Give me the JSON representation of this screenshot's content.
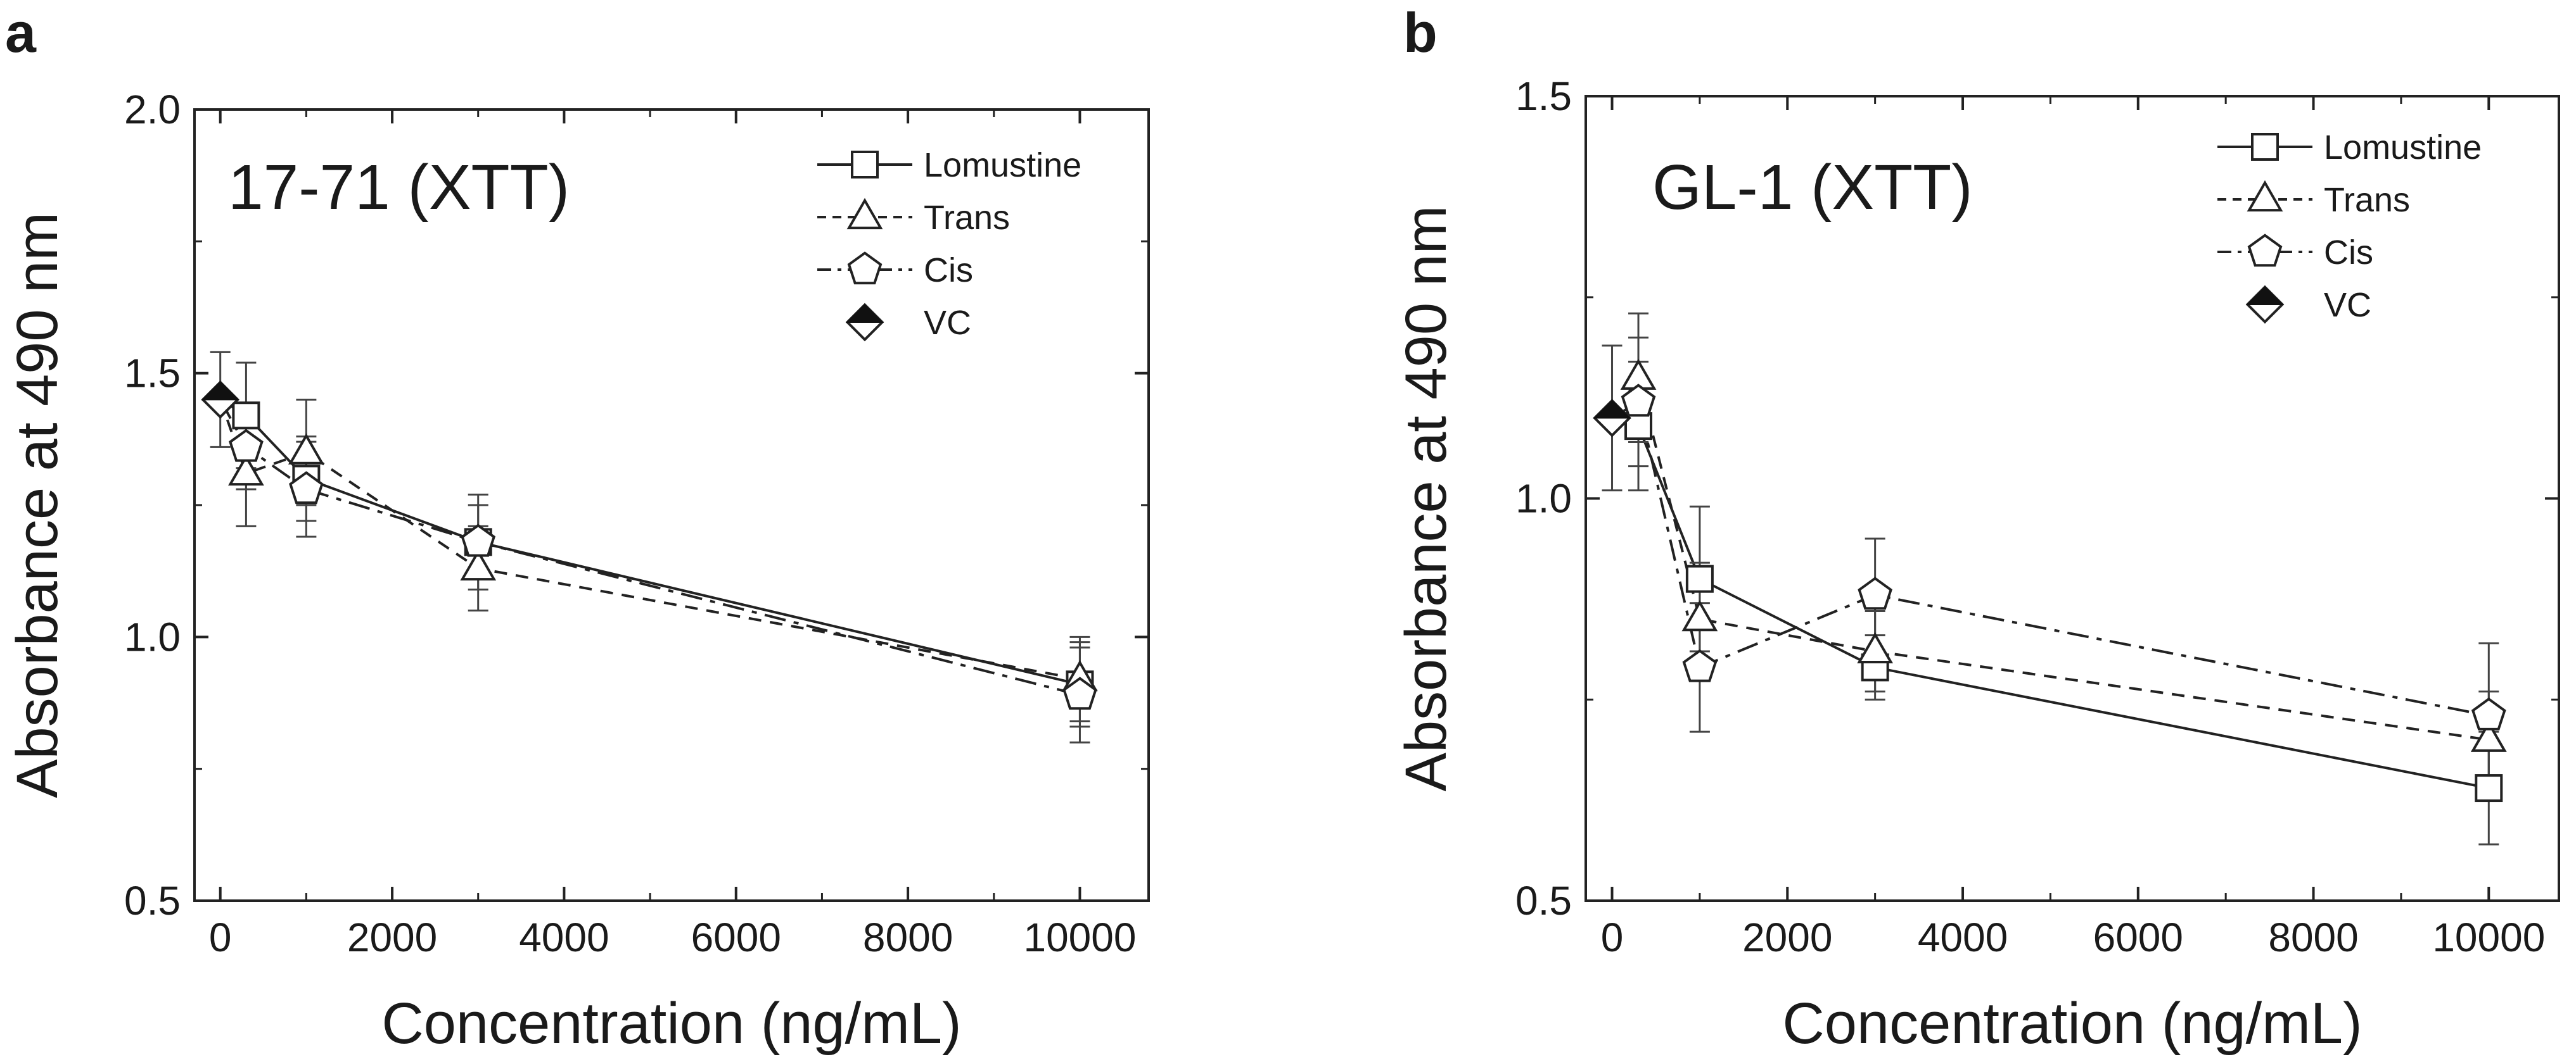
{
  "chart_data": [
    {
      "panel": "a",
      "type": "line",
      "title": "17-71 (XTT)",
      "xlabel": "Concentration (ng/mL)",
      "ylabel": "Absorbance at 490 nm",
      "xlim": [
        -300,
        10800
      ],
      "ylim": [
        0.5,
        2.0
      ],
      "xticks": [
        0,
        2000,
        4000,
        6000,
        8000,
        10000
      ],
      "yticks": [
        0.5,
        1.0,
        1.5,
        2.0
      ],
      "ytick_labels": [
        "0.5",
        "1.0",
        "1.5",
        "2.0"
      ],
      "legend_position": "top-right",
      "vc": {
        "name": "VC",
        "x": 0,
        "y": 1.45,
        "err": 0.09
      },
      "series": [
        {
          "name": "Lomustine",
          "marker": "square",
          "dash": "solid",
          "x": [
            300,
            1000,
            3000,
            10000
          ],
          "y": [
            1.42,
            1.3,
            1.18,
            0.91
          ],
          "err": [
            0.1,
            0.08,
            0.09,
            0.08
          ]
        },
        {
          "name": "Trans",
          "marker": "triangle",
          "dash": "dash",
          "x": [
            300,
            1000,
            3000,
            10000
          ],
          "y": [
            1.31,
            1.35,
            1.13,
            0.92
          ],
          "err": [
            0.1,
            0.1,
            0.08,
            0.08
          ]
        },
        {
          "name": "Cis",
          "marker": "pentagon",
          "dash": "dashdot",
          "x": [
            300,
            1000,
            3000,
            10000
          ],
          "y": [
            1.36,
            1.28,
            1.18,
            0.89
          ],
          "err": [
            0.08,
            0.09,
            0.07,
            0.09
          ]
        }
      ]
    },
    {
      "panel": "b",
      "type": "line",
      "title": "GL-1 (XTT)",
      "xlabel": "Concentration (ng/mL)",
      "ylabel": "Absorbance at 490 nm",
      "xlim": [
        -300,
        10800
      ],
      "ylim": [
        0.5,
        1.5
      ],
      "xticks": [
        0,
        2000,
        4000,
        6000,
        8000,
        10000
      ],
      "yticks": [
        0.5,
        1.0,
        1.5
      ],
      "ytick_labels": [
        "0.5",
        "1.0",
        "1.5"
      ],
      "legend_position": "top-right",
      "vc": {
        "name": "VC",
        "x": 0,
        "y": 1.1,
        "err": 0.09
      },
      "series": [
        {
          "name": "Lomustine",
          "marker": "square",
          "dash": "solid",
          "x": [
            300,
            1000,
            3000,
            10000
          ],
          "y": [
            1.09,
            0.9,
            0.79,
            0.64
          ],
          "err": [
            0.08,
            0.09,
            0.04,
            0.07
          ]
        },
        {
          "name": "Trans",
          "marker": "triangle",
          "dash": "dash",
          "x": [
            300,
            1000,
            3000,
            10000
          ],
          "y": [
            1.15,
            0.85,
            0.81,
            0.7
          ],
          "err": [
            0.08,
            0.07,
            0.05,
            0.06
          ]
        },
        {
          "name": "Cis",
          "marker": "pentagon",
          "dash": "dashdot",
          "x": [
            300,
            1000,
            3000,
            10000
          ],
          "y": [
            1.12,
            0.79,
            0.88,
            0.73
          ],
          "err": [
            0.08,
            0.08,
            0.07,
            0.09
          ]
        }
      ]
    }
  ]
}
